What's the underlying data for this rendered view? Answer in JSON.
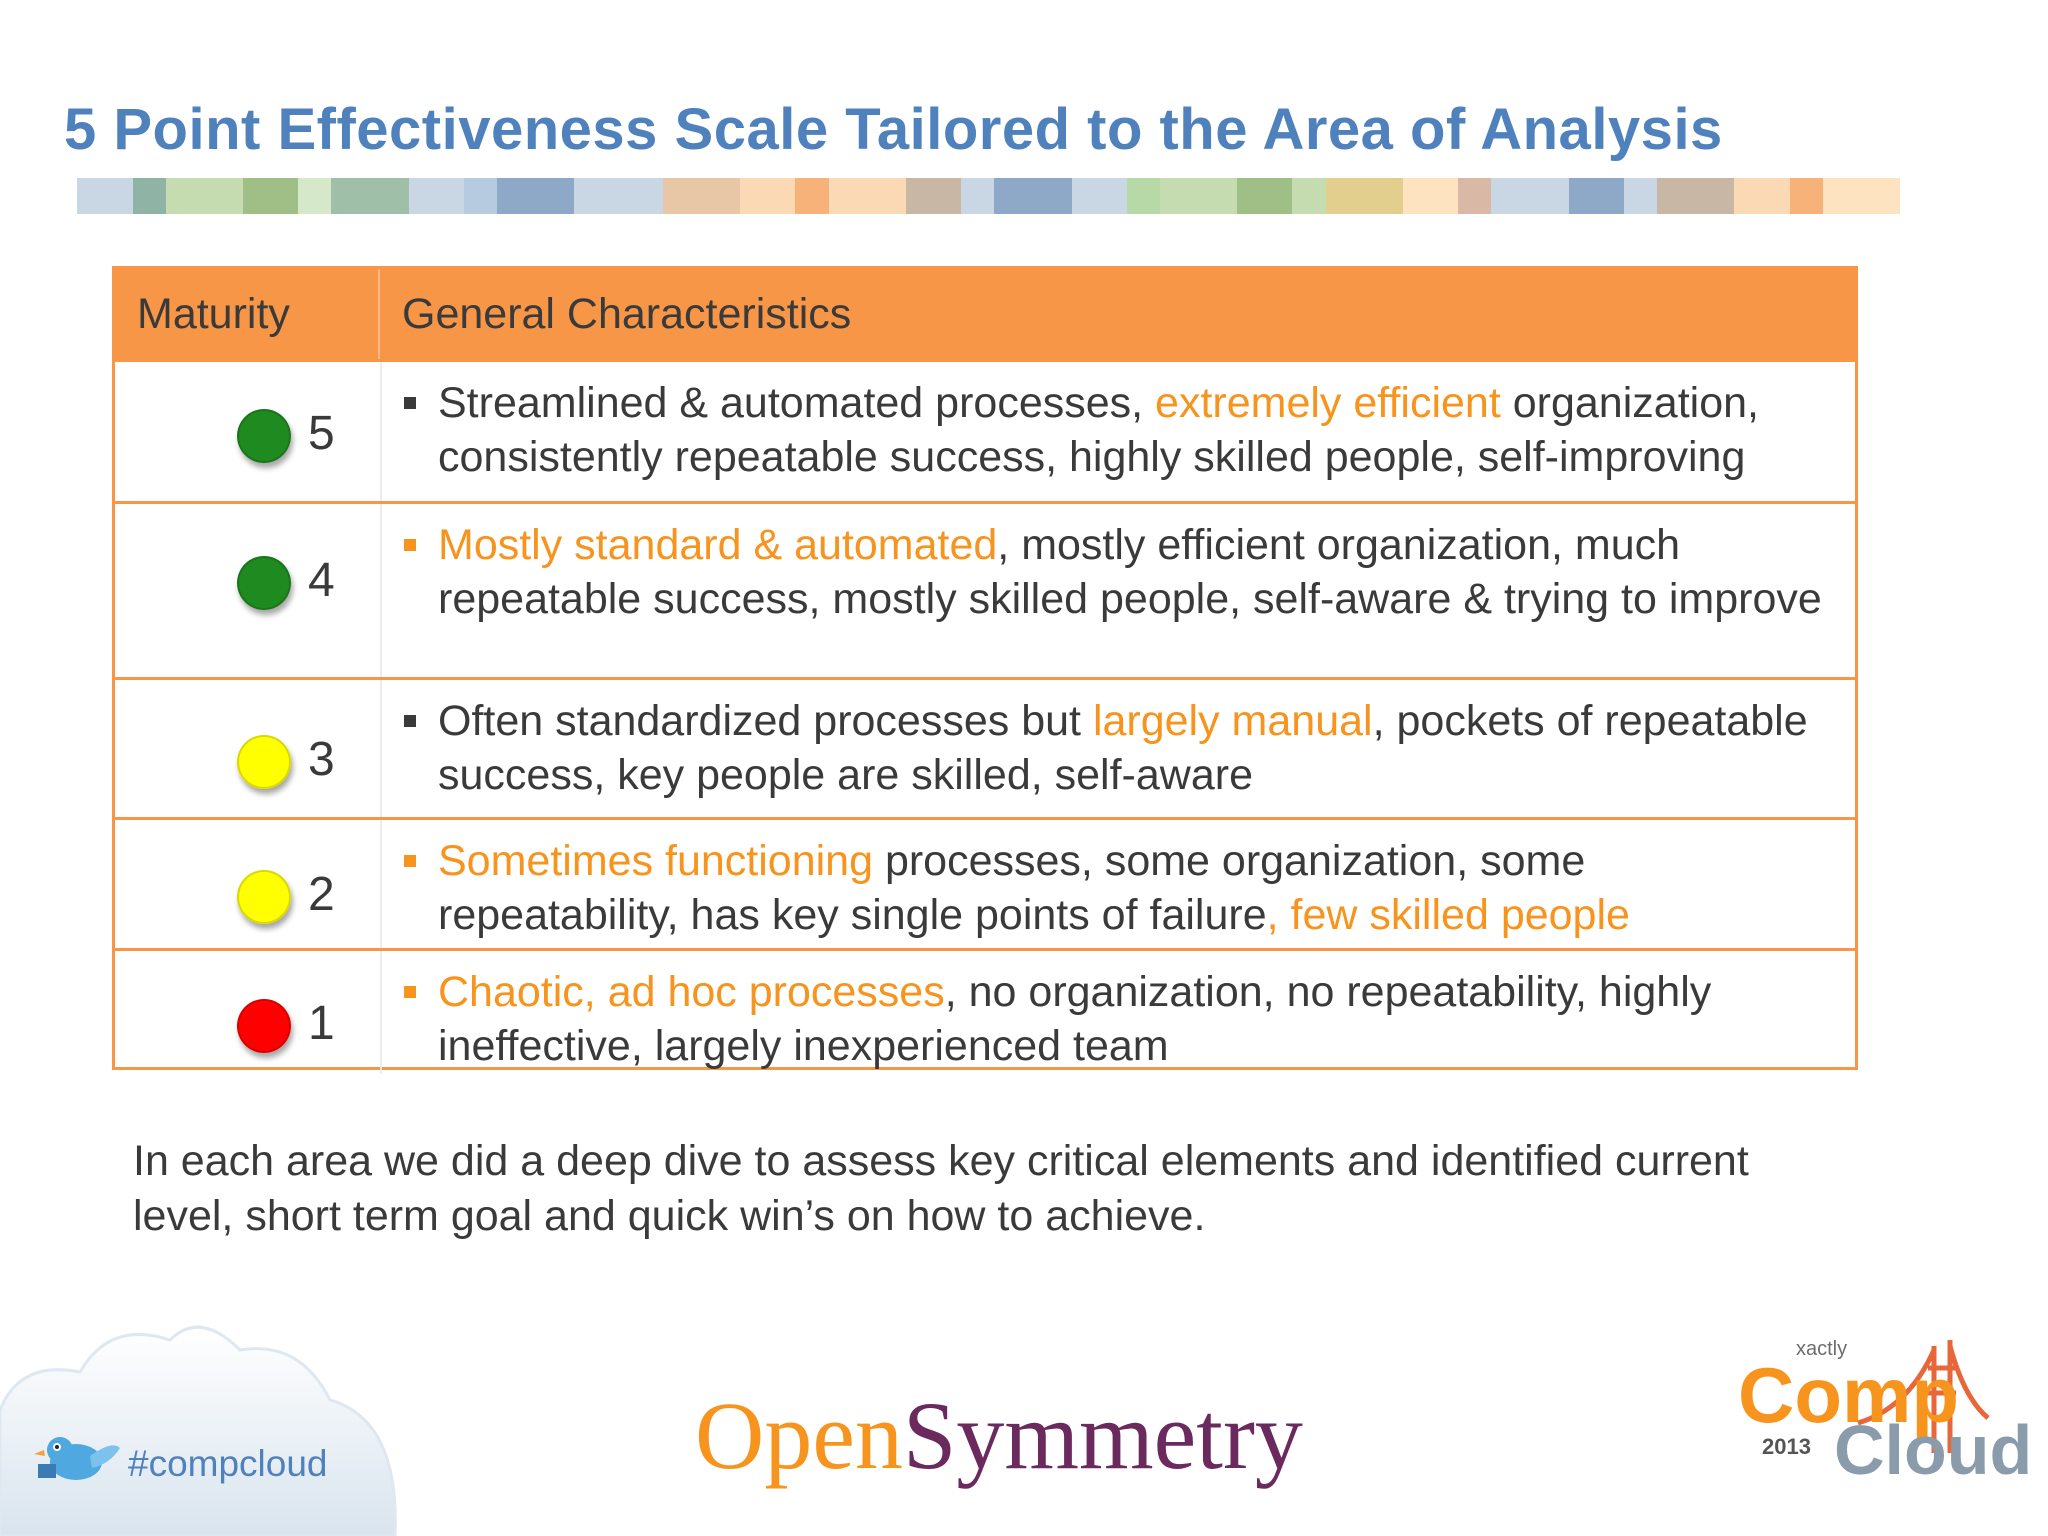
{
  "title": "5 Point Effectiveness Scale Tailored to the Area of Analysis",
  "stripe_colors": [
    "#ffffff",
    "#c9d6e3",
    "#8fb3a4",
    "#c5dcb0",
    "#9fbf86",
    "#d5e8c9",
    "#9fbfa8",
    "#c9d6e3",
    "#b7cbe0",
    "#8ea9c8",
    "#c9d6e3",
    "#c9d6e3",
    "#e8c7a6",
    "#fbd9b5",
    "#f7b27a",
    "#fbd9b5",
    "#c9b7a6",
    "#c9d6e3",
    "#8ea9c8",
    "#c9d6e3",
    "#b7d9a8",
    "#c5dcb0",
    "#9fbf86",
    "#c5dcb0",
    "#e3cf8d",
    "#fde3bf",
    "#d9b8a6",
    "#c9d6e3",
    "#8ea9c8",
    "#c9d6e3",
    "#c9b7a6",
    "#fbd9b5",
    "#f7b27a",
    "#fde3bf"
  ],
  "table": {
    "header": {
      "maturity": "Maturity",
      "characteristics": "General Characteristics"
    },
    "rows": [
      {
        "level": "5",
        "dot_color": "#1f8a1f",
        "bullet_color": "#3a3a3a",
        "segments": [
          {
            "text": "Streamlined & automated processes, ",
            "hl": false
          },
          {
            "text": "extremely efficient",
            "hl": true
          },
          {
            "text": " organization, consistently repeatable success, highly skilled people, self-improving",
            "hl": false
          }
        ]
      },
      {
        "level": "4",
        "dot_color": "#1f8a1f",
        "bullet_color": "#f7941d",
        "segments": [
          {
            "text": "Mostly standard & automated",
            "hl": true
          },
          {
            "text": ", mostly efficient organization, much repeatable success, mostly skilled people, self-aware & trying to improve",
            "hl": false
          }
        ]
      },
      {
        "level": "3",
        "dot_color": "#ffff00",
        "bullet_color": "#3a3a3a",
        "segments": [
          {
            "text": "Often standardized processes but ",
            "hl": false
          },
          {
            "text": "largely manual",
            "hl": true
          },
          {
            "text": ", pockets of repeatable success, key people are skilled, self-aware",
            "hl": false
          }
        ]
      },
      {
        "level": "2",
        "dot_color": "#ffff00",
        "bullet_color": "#f7941d",
        "segments": [
          {
            "text": "Sometimes functioning",
            "hl": true
          },
          {
            "text": " processes, some organization, some repeatability, has key single points of failure",
            "hl": false
          },
          {
            "text": ", few skilled people",
            "hl": true
          }
        ]
      },
      {
        "level": "1",
        "dot_color": "#ff0000",
        "bullet_color": "#f7941d",
        "segments": [
          {
            "text": "Chaotic, ad hoc processes",
            "hl": true
          },
          {
            "text": ", no organization, no repeatability, highly ineffective, largely inexperienced team",
            "hl": false
          }
        ]
      }
    ]
  },
  "footer_text": "In each area we did a deep dive to assess key critical elements and identified current level, short term goal and quick win’s on how to achieve.",
  "hashtag": "#compcloud",
  "logo": {
    "open": "Open",
    "symmetry": "Symmetry"
  },
  "compcloud_logo": {
    "xactly": "xactly",
    "comp": "Comp",
    "cloud": "Cloud",
    "year": "2013"
  }
}
